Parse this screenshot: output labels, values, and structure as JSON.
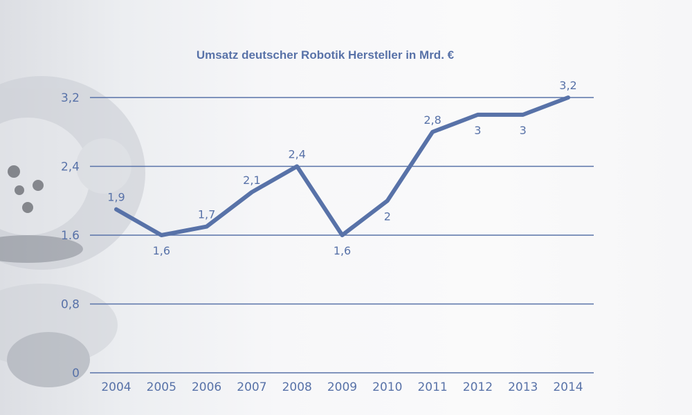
{
  "colors": {
    "line": "#5872a8",
    "grid": "#5872a8",
    "text": "#5872a8"
  },
  "chart_data": {
    "type": "line",
    "title": "Umsatz deutscher Robotik Hersteller in Mrd. €",
    "xlabel": "",
    "ylabel": "",
    "categories": [
      "2004",
      "2005",
      "2006",
      "2007",
      "2008",
      "2009",
      "2010",
      "2011",
      "2012",
      "2013",
      "2014"
    ],
    "series": [
      {
        "values": [
          1.9,
          1.6,
          1.7,
          2.1,
          2.4,
          1.6,
          2.0,
          2.8,
          3.0,
          3.0,
          3.2
        ],
        "labels": [
          "1,9",
          "1,6",
          "1,7",
          "2,1",
          "2,4",
          "1,6",
          "2",
          "2,8",
          "3",
          "3",
          "3,2"
        ]
      }
    ],
    "yticks": [
      0,
      0.8,
      1.6,
      2.4,
      3.2
    ],
    "ytick_labels": [
      "0",
      "0,8",
      "1.6",
      "2,4",
      "3,2"
    ],
    "ylim": [
      0,
      3.2
    ],
    "grid": true,
    "legend": "none"
  }
}
